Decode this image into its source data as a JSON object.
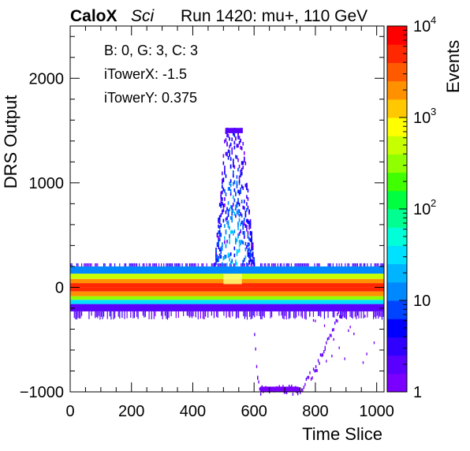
{
  "header": {
    "brand": "CaloX",
    "subtitle": "Sci",
    "run_text": "Run 1420: mu+, 110 GeV"
  },
  "info_box": {
    "lines": [
      "B: 0, G: 3, C: 3",
      "iTowerX: -1.5",
      "iTowerY: 0.375"
    ]
  },
  "chart_data": {
    "type": "heatmap",
    "title": "",
    "xlabel": "Time Slice",
    "ylabel": "DRS Output",
    "zlabel": "Events",
    "xlim": [
      0,
      1024
    ],
    "ylim": [
      -1000,
      2500
    ],
    "zlim": [
      1,
      10000
    ],
    "z_scale": "log",
    "x_ticks": [
      0,
      200,
      400,
      600,
      800,
      1000
    ],
    "x_tick_labels": [
      "0",
      "200",
      "400",
      "600",
      "800",
      "1000"
    ],
    "y_ticks": [
      -1000,
      0,
      1000,
      2000
    ],
    "y_tick_labels": [
      "−1000",
      "0",
      "1000",
      "2000"
    ],
    "z_tick_labels": [
      {
        "value": 1,
        "label": "1"
      },
      {
        "value": 10,
        "label": "10"
      },
      {
        "value": 100,
        "label": "10",
        "exp": "2"
      },
      {
        "value": 1000,
        "label": "10",
        "exp": "3"
      },
      {
        "value": 10000,
        "label": "10",
        "exp": "4"
      }
    ],
    "palette": [
      "#7a00ff",
      "#5a00ff",
      "#3000ff",
      "#0000ff",
      "#0044ff",
      "#0088ff",
      "#00b4ff",
      "#00e0ff",
      "#00ffd8",
      "#00ff90",
      "#00ff40",
      "#40ff00",
      "#90ff00",
      "#c8ff00",
      "#ffff00",
      "#ffc800",
      "#ff9000",
      "#ff5a00",
      "#ff2800",
      "#ff0000"
    ],
    "grid": false,
    "legend": "right colorbar",
    "pedestal_bands": [
      {
        "y": [
          130,
          200
        ],
        "z": 10
      },
      {
        "y": [
          80,
          130
        ],
        "z": 400
      },
      {
        "y": [
          40,
          80
        ],
        "z": 2000
      },
      {
        "y": [
          0,
          40
        ],
        "z": 4000
      },
      {
        "y": [
          -40,
          0
        ],
        "z": 5000
      },
      {
        "y": [
          -85,
          -40
        ],
        "z": 2000
      },
      {
        "y": [
          -120,
          -85
        ],
        "z": 300
      },
      {
        "y": [
          -160,
          -120
        ],
        "z": 30
      },
      {
        "y": [
          -230,
          -160
        ],
        "z": 2
      }
    ],
    "pulse": {
      "peak_x": 530,
      "plateau_y": 1500,
      "plateau_x": [
        505,
        560
      ],
      "rise_x": [
        470,
        515
      ],
      "fall_x": [
        545,
        600
      ]
    },
    "negative_track": [
      {
        "x": 600,
        "y": -480
      },
      {
        "x": 610,
        "y": -900
      },
      {
        "x": 620,
        "y": -1000
      },
      {
        "x": 745,
        "y": -1000
      },
      {
        "x": 800,
        "y": -800
      },
      {
        "x": 830,
        "y": -600
      },
      {
        "x": 870,
        "y": -300
      },
      {
        "x": 900,
        "y": -220
      }
    ]
  }
}
